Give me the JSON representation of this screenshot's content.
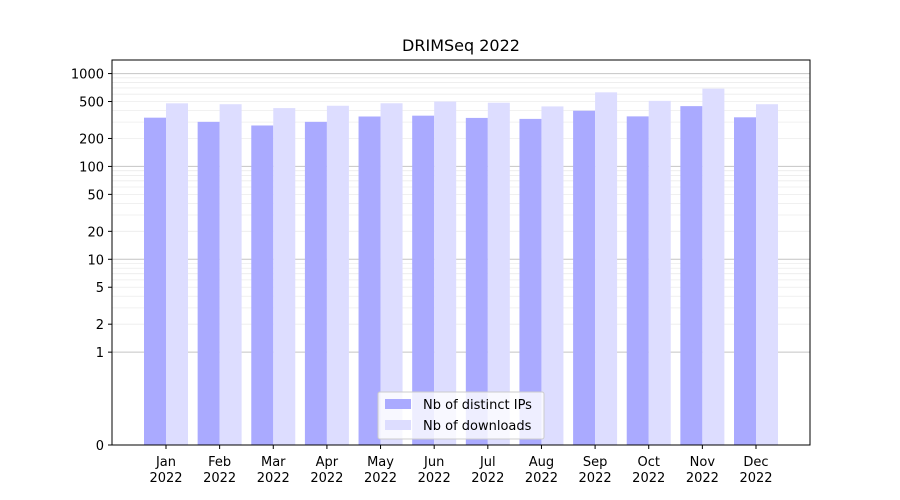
{
  "chart_data": {
    "type": "bar",
    "title": "DRIMSeq 2022",
    "xlabel": "",
    "ylabel": "",
    "scale": "symlog",
    "categories": [
      [
        "Jan",
        "2022"
      ],
      [
        "Feb",
        "2022"
      ],
      [
        "Mar",
        "2022"
      ],
      [
        "Apr",
        "2022"
      ],
      [
        "May",
        "2022"
      ],
      [
        "Jun",
        "2022"
      ],
      [
        "Jul",
        "2022"
      ],
      [
        "Aug",
        "2022"
      ],
      [
        "Sep",
        "2022"
      ],
      [
        "Oct",
        "2022"
      ],
      [
        "Nov",
        "2022"
      ],
      [
        "Dec",
        "2022"
      ]
    ],
    "y_ticks": [
      "0",
      "1",
      "2",
      "5",
      "10",
      "20",
      "50",
      "100",
      "200",
      "500",
      "1000"
    ],
    "ylim": [
      0,
      1400
    ],
    "grid": true,
    "legend_position": "bottom-center",
    "series": [
      {
        "name": "Nb of distinct IPs",
        "color": "#aaaaff",
        "values": [
          335,
          302,
          276,
          302,
          345,
          352,
          333,
          325,
          398,
          346,
          446,
          338
        ]
      },
      {
        "name": "Nb of downloads",
        "color": "#ddddff",
        "values": [
          478,
          468,
          425,
          450,
          479,
          500,
          485,
          443,
          628,
          508,
          688,
          468
        ]
      }
    ]
  }
}
